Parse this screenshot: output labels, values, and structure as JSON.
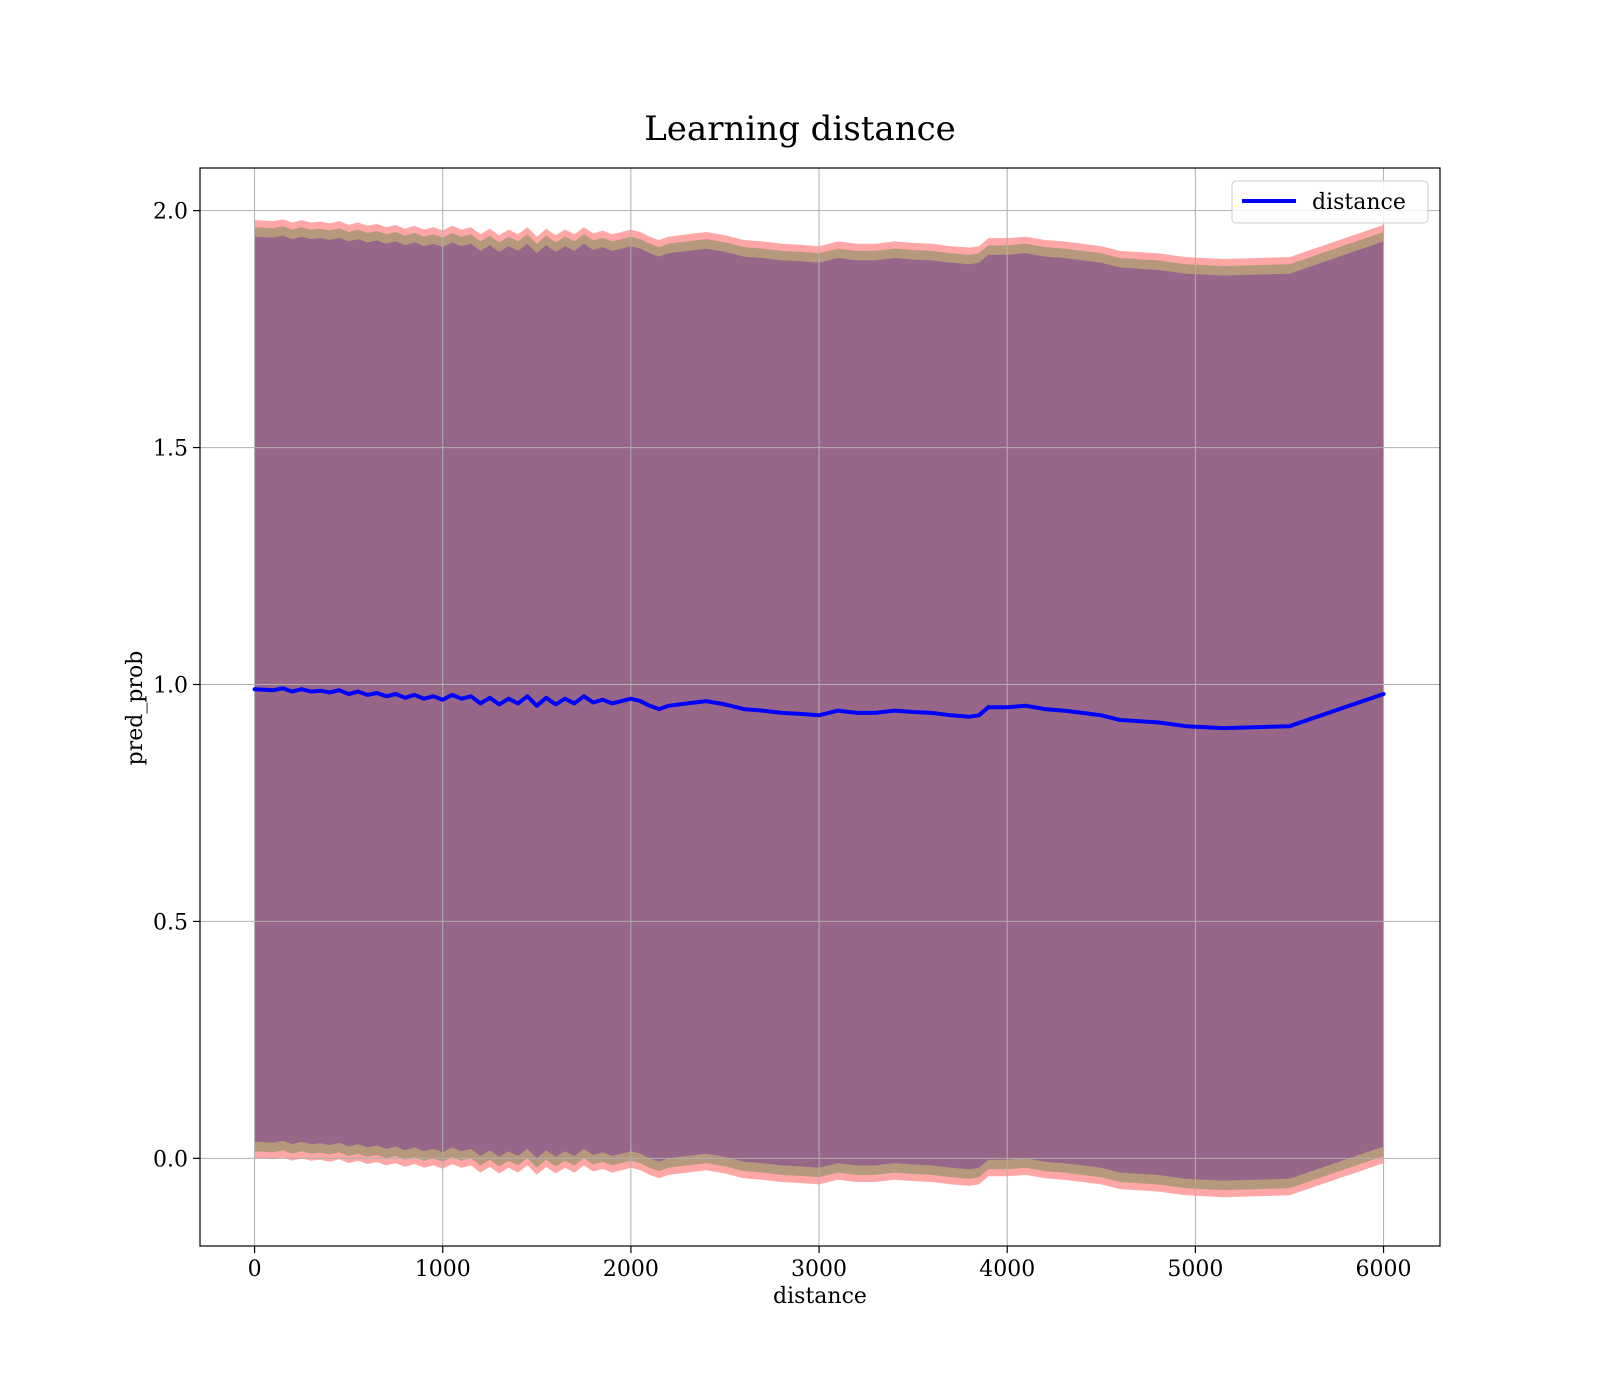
{
  "chart_data": {
    "type": "line",
    "title": "Learning distance",
    "xlabel": "distance",
    "ylabel": "pred_prob",
    "xlim": [
      -290,
      6300
    ],
    "ylim": [
      -0.185,
      2.09
    ],
    "x_ticks": [
      0,
      1000,
      2000,
      3000,
      4000,
      5000,
      6000
    ],
    "x_tick_labels": [
      "0",
      "1000",
      "2000",
      "3000",
      "4000",
      "5000",
      "6000"
    ],
    "y_ticks": [
      0.0,
      0.5,
      1.0,
      1.5,
      2.0
    ],
    "y_tick_labels": [
      "0.0",
      "0.5",
      "1.0",
      "1.5",
      "2.0"
    ],
    "grid": true,
    "legend_position": "upper right",
    "series": [
      {
        "name": "distance",
        "color": "#0000ff",
        "x": [
          0,
          100,
          150,
          200,
          250,
          300,
          350,
          400,
          450,
          500,
          550,
          600,
          650,
          700,
          750,
          800,
          850,
          900,
          950,
          1000,
          1050,
          1100,
          1150,
          1200,
          1250,
          1300,
          1350,
          1400,
          1450,
          1500,
          1550,
          1600,
          1650,
          1700,
          1750,
          1800,
          1850,
          1900,
          1950,
          2000,
          2050,
          2100,
          2150,
          2200,
          2300,
          2400,
          2500,
          2600,
          2700,
          2800,
          2900,
          3000,
          3100,
          3200,
          3300,
          3400,
          3500,
          3600,
          3700,
          3800,
          3850,
          3900,
          4000,
          4100,
          4200,
          4300,
          4400,
          4500,
          4600,
          4800,
          4950,
          5150,
          5500,
          6000
        ],
        "y": [
          0.99,
          0.988,
          0.992,
          0.985,
          0.99,
          0.985,
          0.987,
          0.983,
          0.988,
          0.98,
          0.985,
          0.978,
          0.982,
          0.975,
          0.98,
          0.972,
          0.978,
          0.97,
          0.975,
          0.968,
          0.978,
          0.97,
          0.975,
          0.96,
          0.972,
          0.958,
          0.97,
          0.96,
          0.975,
          0.955,
          0.972,
          0.958,
          0.97,
          0.96,
          0.975,
          0.962,
          0.968,
          0.96,
          0.965,
          0.97,
          0.965,
          0.955,
          0.948,
          0.955,
          0.96,
          0.965,
          0.958,
          0.948,
          0.945,
          0.94,
          0.938,
          0.935,
          0.945,
          0.94,
          0.94,
          0.945,
          0.942,
          0.94,
          0.935,
          0.932,
          0.935,
          0.952,
          0.952,
          0.955,
          0.948,
          0.945,
          0.94,
          0.935,
          0.925,
          0.92,
          0.912,
          0.908,
          0.912,
          0.98
        ]
      }
    ],
    "bands": [
      {
        "color": "#ff0000",
        "alpha": 0.35,
        "half_width": 0.99
      },
      {
        "color": "#2e7d32",
        "alpha": 0.35,
        "half_width": 0.975
      },
      {
        "color": "#6a1b9a",
        "alpha": 0.4,
        "half_width": 0.955
      }
    ]
  }
}
